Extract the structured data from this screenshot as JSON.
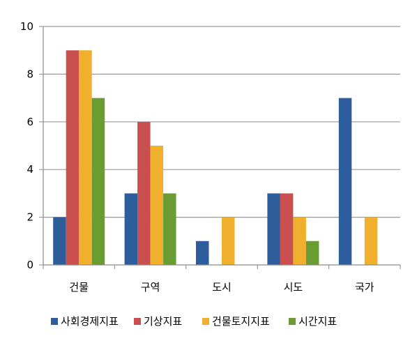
{
  "chart_data": {
    "type": "bar",
    "categories": [
      "건물",
      "구역",
      "도시",
      "시도",
      "국가"
    ],
    "series": [
      {
        "name": "사회경제지표",
        "color": "#2E5D9B",
        "values": [
          2,
          3,
          1,
          3,
          7
        ]
      },
      {
        "name": "기상지표",
        "color": "#C9504F",
        "values": [
          9,
          6,
          null,
          3,
          null
        ]
      },
      {
        "name": "건물토지지표",
        "color": "#F0B02E",
        "values": [
          9,
          5,
          2,
          2,
          2
        ]
      },
      {
        "name": "시간지표",
        "color": "#6A9C34",
        "values": [
          7,
          3,
          null,
          1,
          null
        ]
      }
    ],
    "ylim": [
      0,
      10
    ],
    "yticks": [
      0,
      2,
      4,
      6,
      8,
      10
    ],
    "grid": true,
    "legend": "bottom"
  }
}
